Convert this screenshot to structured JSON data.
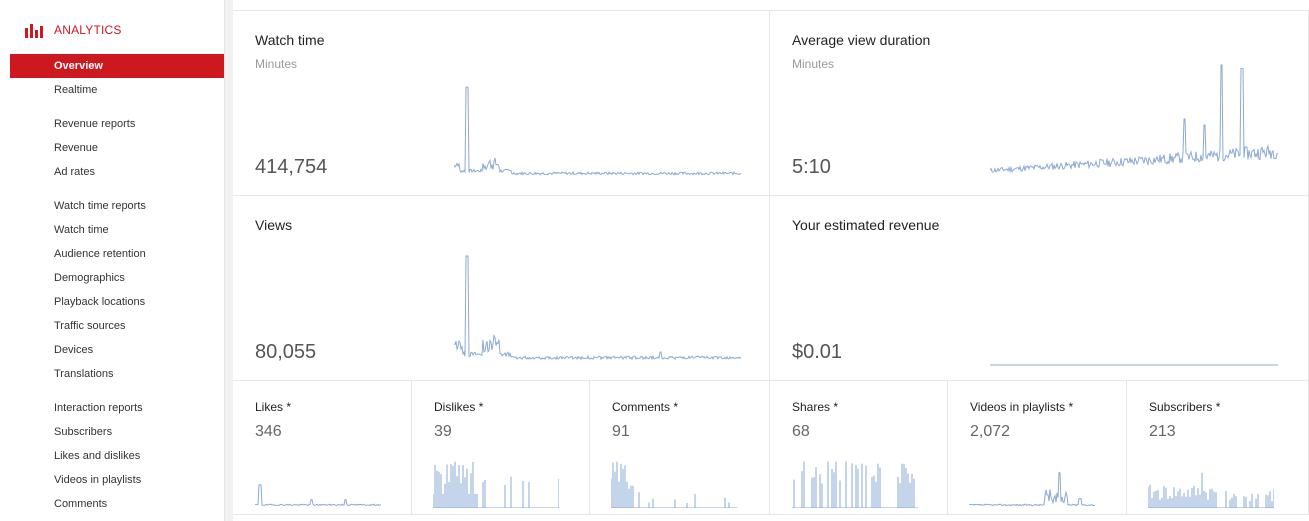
{
  "sidebar": {
    "brand_icon": "bar-chart-icon",
    "brand": "ANALYTICS",
    "items": [
      {
        "label": "Overview",
        "active": true
      },
      {
        "label": "Realtime"
      },
      {
        "label": "Revenue reports"
      },
      {
        "label": "Revenue"
      },
      {
        "label": "Ad rates"
      },
      {
        "label": "Watch time reports"
      },
      {
        "label": "Watch time"
      },
      {
        "label": "Audience retention"
      },
      {
        "label": "Demographics"
      },
      {
        "label": "Playback locations"
      },
      {
        "label": "Traffic sources"
      },
      {
        "label": "Devices"
      },
      {
        "label": "Translations"
      },
      {
        "label": "Interaction reports"
      },
      {
        "label": "Subscribers"
      },
      {
        "label": "Likes and dislikes"
      },
      {
        "label": "Videos in playlists"
      },
      {
        "label": "Comments"
      }
    ]
  },
  "colors": {
    "accent": "#cc181e",
    "sparkline": "#8aaad4"
  },
  "metrics": {
    "watch_time": {
      "title": "Watch time",
      "sub": "Minutes",
      "value": "414,754"
    },
    "avg_view_duration": {
      "title": "Average view duration",
      "sub": "Minutes",
      "value": "5:10"
    },
    "views": {
      "title": "Views",
      "value": "80,055"
    },
    "revenue": {
      "title": "Your estimated revenue",
      "value": "$0.01"
    },
    "likes": {
      "title": "Likes *",
      "value": "346"
    },
    "dislikes": {
      "title": "Dislikes *",
      "value": "39"
    },
    "comments": {
      "title": "Comments *",
      "value": "91"
    },
    "shares": {
      "title": "Shares *",
      "value": "68"
    },
    "videos_in_playlists": {
      "title": "Videos in playlists *",
      "value": "2,072"
    },
    "subscribers": {
      "title": "Subscribers *",
      "value": "213"
    }
  }
}
